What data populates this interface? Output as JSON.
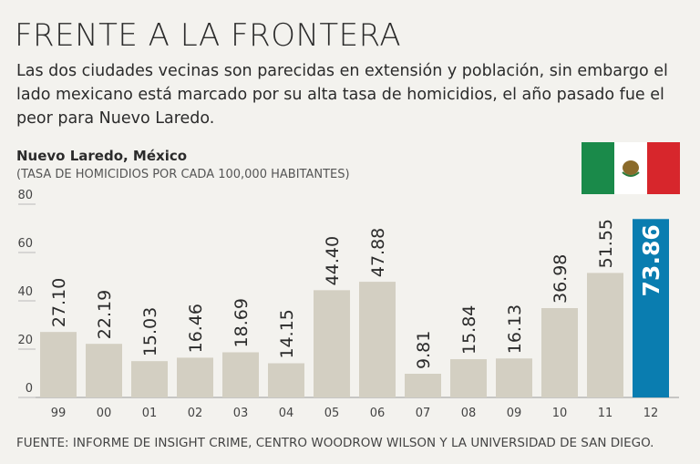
{
  "title": "FRENTE A LA FRONTERA",
  "description": [
    "Las dos ciudades vecinas son parecidas en extensión y población, sin embargo el",
    "lado mexicano está marcado por su alta tasa de homicidios, el año pasado fue el",
    "peor para Nuevo Laredo."
  ],
  "chart_data": {
    "type": "bar",
    "title": "Nuevo Laredo, México",
    "subtitle": "(TASA DE HOMICIDIOS POR CADA 100,000 HABITANTES)",
    "categories": [
      "99",
      "00",
      "01",
      "02",
      "03",
      "04",
      "05",
      "06",
      "07",
      "08",
      "09",
      "10",
      "11",
      "12"
    ],
    "values": [
      27.1,
      22.19,
      15.03,
      16.46,
      18.69,
      14.15,
      44.4,
      47.88,
      9.81,
      15.84,
      16.13,
      36.98,
      51.55,
      73.86
    ],
    "value_labels": [
      "27.10",
      "22.19",
      "15.03",
      "16.46",
      "18.69",
      "14.15",
      "44.40",
      "47.88",
      "9.81",
      "15.84",
      "16.13",
      "36.98",
      "51.55",
      "73.86"
    ],
    "color": "#d3cfc2",
    "colors": [
      "#d3cfc2",
      "#d3cfc2",
      "#d3cfc2",
      "#d3cfc2",
      "#d3cfc2",
      "#d3cfc2",
      "#d3cfc2",
      "#d3cfc2",
      "#d3cfc2",
      "#d3cfc2",
      "#d3cfc2",
      "#d3cfc2",
      "#d3cfc2",
      "#0a7db0"
    ],
    "ylim": [
      0,
      80
    ],
    "yticks": [
      0,
      20,
      40,
      60,
      80
    ],
    "source": "FUENTE: INFORME DE INSIGHT CRIME, CENTRO WOODROW WILSON Y LA UNIVERSIDAD DE SAN DIEGO."
  }
}
